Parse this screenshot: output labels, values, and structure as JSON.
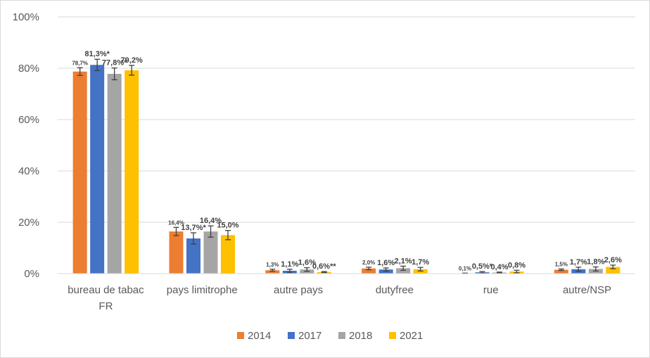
{
  "chart_data": {
    "type": "bar",
    "title": "",
    "xlabel": "",
    "ylabel": "",
    "ylim": [
      0,
      100
    ],
    "y_ticks": [
      "0%",
      "20%",
      "40%",
      "60%",
      "80%",
      "100%"
    ],
    "grid": true,
    "legend_position": "bottom",
    "categories": [
      [
        "bureau de tabac",
        "FR"
      ],
      [
        "pays limitrophe"
      ],
      [
        "autre pays"
      ],
      [
        "dutyfree"
      ],
      [
        "rue"
      ],
      [
        "autre/NSP"
      ]
    ],
    "series": [
      {
        "name": "2014",
        "color": "#ED7D31",
        "values": [
          78.7,
          16.4,
          1.3,
          2.0,
          0.1,
          1.5
        ],
        "errors": [
          1.5,
          1.6,
          0.4,
          0.5,
          0.1,
          0.3
        ],
        "labels": [
          "78,7%",
          "16,4%",
          "1,3%",
          "2,0%",
          "0,1%",
          "1,5%"
        ]
      },
      {
        "name": "2017",
        "color": "#4472C4",
        "values": [
          81.3,
          13.7,
          1.1,
          1.6,
          0.5,
          1.7
        ],
        "errors": [
          2.2,
          2.2,
          0.6,
          0.6,
          0.3,
          0.8
        ],
        "labels": [
          "81,3%*",
          "13,7%*",
          "1,1%",
          "1,6%",
          "0,5%*",
          "1,7%"
        ]
      },
      {
        "name": "2018",
        "color": "#A5A5A5",
        "values": [
          77.8,
          16.4,
          1.6,
          2.1,
          0.4,
          1.8
        ],
        "errors": [
          2.3,
          2.2,
          0.7,
          0.8,
          0.2,
          0.8
        ],
        "labels": [
          "77,8%*",
          "16,4%",
          "1,6%",
          "2,1%",
          "0,4%",
          "1,8%"
        ]
      },
      {
        "name": "2021",
        "color": "#FFC000",
        "values": [
          79.2,
          15.0,
          0.6,
          1.7,
          0.8,
          2.6
        ],
        "errors": [
          1.9,
          1.8,
          0.2,
          0.7,
          0.5,
          0.7
        ],
        "labels": [
          "79,2%",
          "15,0%",
          "0,6%**",
          "1,7%",
          "0,8%",
          "2,6%"
        ]
      }
    ]
  }
}
